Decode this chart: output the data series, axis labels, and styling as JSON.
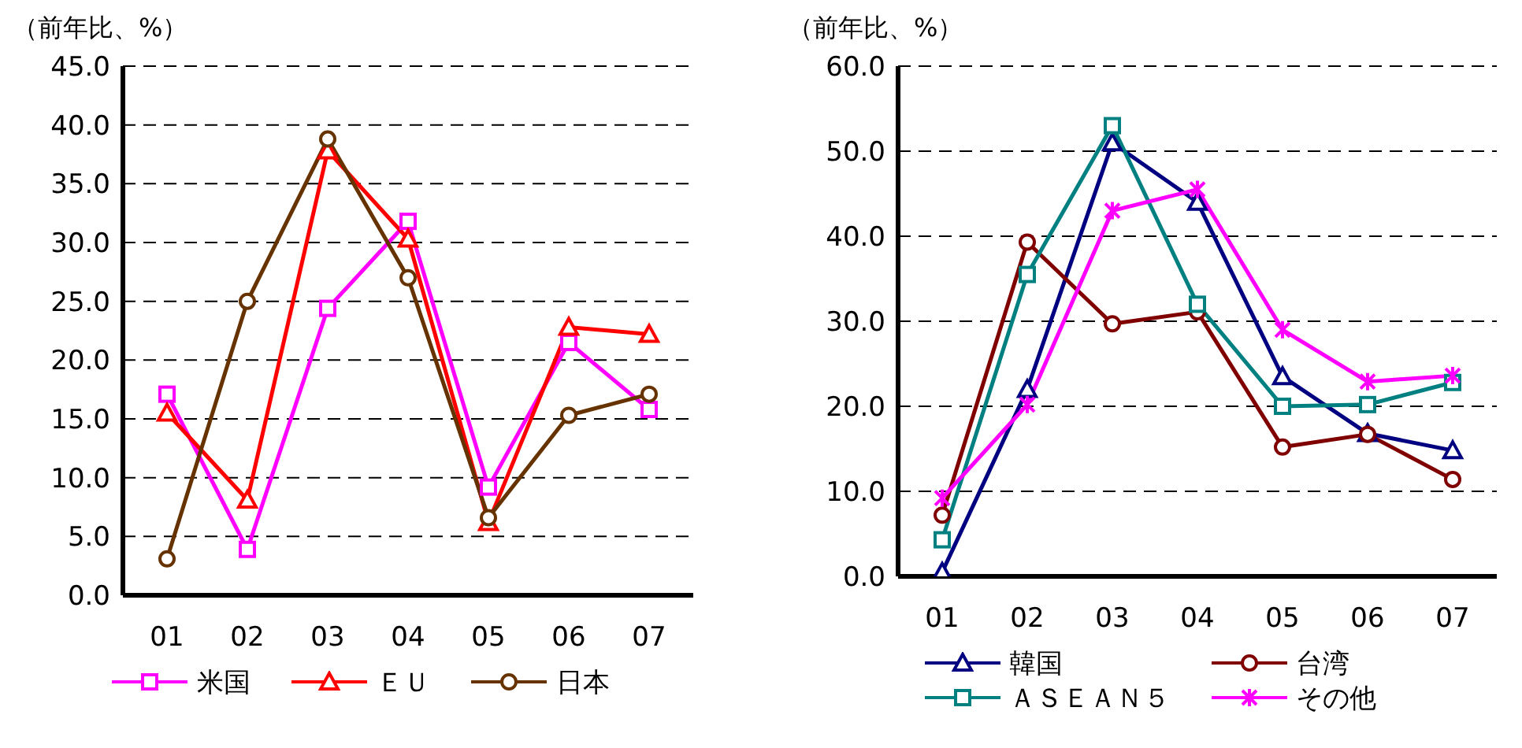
{
  "chart_data": [
    {
      "type": "line",
      "ylabel": "（前年比、%）",
      "categories": [
        "01",
        "02",
        "03",
        "04",
        "05",
        "06",
        "07"
      ],
      "ylim": [
        0,
        45
      ],
      "yticks": [
        {
          "value": 0,
          "label": "0.0"
        },
        {
          "value": 5,
          "label": "5.0"
        },
        {
          "value": 10,
          "label": "10.0"
        },
        {
          "value": 15,
          "label": "15.0"
        },
        {
          "value": 20,
          "label": "20.0"
        },
        {
          "value": 25,
          "label": "25.0"
        },
        {
          "value": 30,
          "label": "30.0"
        },
        {
          "value": 35,
          "label": "35.0"
        },
        {
          "value": 40,
          "label": "40.0"
        },
        {
          "value": 45,
          "label": "45.0"
        }
      ],
      "grid": "y",
      "legend": "bottom",
      "series": [
        {
          "name": "米国",
          "color": "#ff00ff",
          "marker": "square",
          "values": [
            17.1,
            3.9,
            24.4,
            31.8,
            9.2,
            21.5,
            15.8
          ]
        },
        {
          "name": "ＥＵ",
          "color": "#ff0000",
          "marker": "triangle",
          "values": [
            15.5,
            8.1,
            37.8,
            30.3,
            6.2,
            22.8,
            22.2
          ]
        },
        {
          "name": "日本",
          "color": "#663300",
          "marker": "circle",
          "values": [
            3.1,
            25.0,
            38.8,
            27.0,
            6.6,
            15.3,
            17.1
          ]
        }
      ]
    },
    {
      "type": "line",
      "ylabel": "（前年比、%）",
      "categories": [
        "01",
        "02",
        "03",
        "04",
        "05",
        "06",
        "07"
      ],
      "ylim": [
        0,
        60
      ],
      "yticks": [
        {
          "value": 0,
          "label": "0.0"
        },
        {
          "value": 10,
          "label": "10.0"
        },
        {
          "value": 20,
          "label": "20.0"
        },
        {
          "value": 30,
          "label": "30.0"
        },
        {
          "value": 40,
          "label": "40.0"
        },
        {
          "value": 50,
          "label": "50.0"
        },
        {
          "value": 60,
          "label": "60.0"
        }
      ],
      "grid": "y",
      "legend": "bottom",
      "series": [
        {
          "name": "韓国",
          "color": "#000080",
          "marker": "triangle",
          "values": [
            0.5,
            22.0,
            51.0,
            44.0,
            23.5,
            16.8,
            14.8
          ]
        },
        {
          "name": "台湾",
          "color": "#800000",
          "marker": "circle",
          "values": [
            7.2,
            39.3,
            29.7,
            31.1,
            15.2,
            16.7,
            11.4
          ]
        },
        {
          "name": "ＡＳＥＡＮ５",
          "color": "#008080",
          "marker": "square",
          "values": [
            4.3,
            35.5,
            53.0,
            32.0,
            20.0,
            20.2,
            22.8
          ]
        },
        {
          "name": "その他",
          "color": "#ff00ff",
          "marker": "cross",
          "values": [
            9.2,
            20.2,
            43.0,
            45.5,
            29.0,
            22.9,
            23.6
          ]
        }
      ]
    }
  ]
}
